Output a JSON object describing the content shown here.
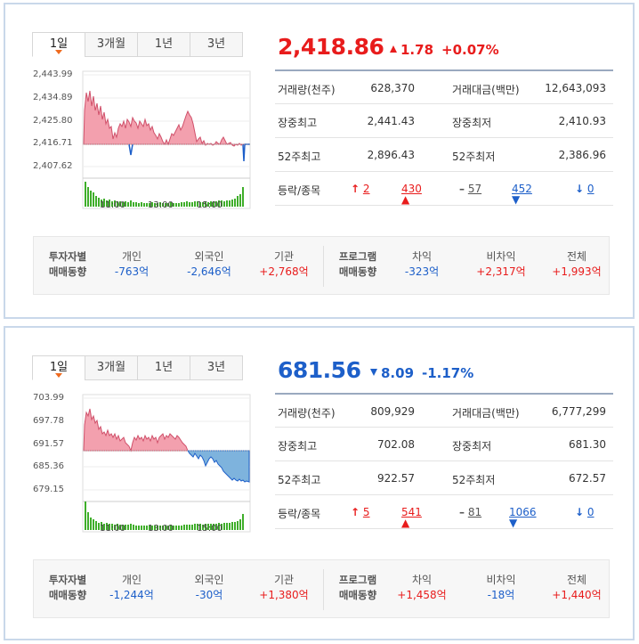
{
  "panels": [
    {
      "tabs": [
        "1일",
        "3개월",
        "1년",
        "3년"
      ],
      "price": "2,418.86",
      "change": "1.78",
      "change_pct": "+0.07%",
      "direction": "up",
      "y_labels": [
        "2,443.99",
        "2,434.89",
        "2,425.80",
        "2,416.71",
        "2,407.62"
      ],
      "x_labels": [
        "11:00",
        "13:00",
        "15:00"
      ],
      "stats": [
        {
          "l1": "거래량(천주)",
          "v1": "628,370",
          "l2": "거래대금(백만)",
          "v2": "12,643,093"
        },
        {
          "l1": "장중최고",
          "v1": "2,441.43",
          "l2": "장중최저",
          "v2": "2,410.93"
        },
        {
          "l1": "52주최고",
          "v1": "2,896.43",
          "l2": "52주최저",
          "v2": "2,386.96"
        }
      ],
      "updown_label": "등락/종목",
      "updown": {
        "upper": "2",
        "up": "430",
        "flat": "57",
        "down": "452",
        "lower": "0"
      },
      "investor_title_1": "투자자별",
      "investor_title_2": "매매동향",
      "investors": [
        {
          "name": "개인",
          "value": "-763억",
          "color": "blue"
        },
        {
          "name": "외국인",
          "value": "-2,646억",
          "color": "blue"
        },
        {
          "name": "기관",
          "value": "+2,768억",
          "color": "red"
        }
      ],
      "program_title_1": "프로그램",
      "program_title_2": "매매동향",
      "program": [
        {
          "name": "차익",
          "value": "-323억",
          "color": "blue"
        },
        {
          "name": "비차익",
          "value": "+2,317억",
          "color": "red"
        },
        {
          "name": "전체",
          "value": "+1,993억",
          "color": "red"
        }
      ]
    },
    {
      "tabs": [
        "1일",
        "3개월",
        "1년",
        "3년"
      ],
      "price": "681.56",
      "change": "8.09",
      "change_pct": "-1.17%",
      "direction": "down",
      "y_labels": [
        "703.99",
        "697.78",
        "691.57",
        "685.36",
        "679.15"
      ],
      "x_labels": [
        "11:00",
        "13:00",
        "15:00"
      ],
      "stats": [
        {
          "l1": "거래량(천주)",
          "v1": "809,929",
          "l2": "거래대금(백만)",
          "v2": "6,777,299"
        },
        {
          "l1": "장중최고",
          "v1": "702.08",
          "l2": "장중최저",
          "v2": "681.30"
        },
        {
          "l1": "52주최고",
          "v1": "922.57",
          "l2": "52주최저",
          "v2": "672.57"
        }
      ],
      "updown_label": "등락/종목",
      "updown": {
        "upper": "5",
        "up": "541",
        "flat": "81",
        "down": "1066",
        "lower": "0"
      },
      "investor_title_1": "투자자별",
      "investor_title_2": "매매동향",
      "investors": [
        {
          "name": "개인",
          "value": "-1,244억",
          "color": "blue"
        },
        {
          "name": "외국인",
          "value": "-30억",
          "color": "blue"
        },
        {
          "name": "기관",
          "value": "+1,380억",
          "color": "red"
        }
      ],
      "program_title_1": "프로그램",
      "program_title_2": "매매동향",
      "program": [
        {
          "name": "차익",
          "value": "+1,458억",
          "color": "red"
        },
        {
          "name": "비차익",
          "value": "-18억",
          "color": "blue"
        },
        {
          "name": "전체",
          "value": "+1,440억",
          "color": "red"
        }
      ]
    }
  ],
  "colors": {
    "up": "#e81c1c",
    "down": "#1d5fc9",
    "area_up": "#f3a0ae",
    "area_down": "#7eb3dd",
    "volume": "#3fae2a"
  }
}
